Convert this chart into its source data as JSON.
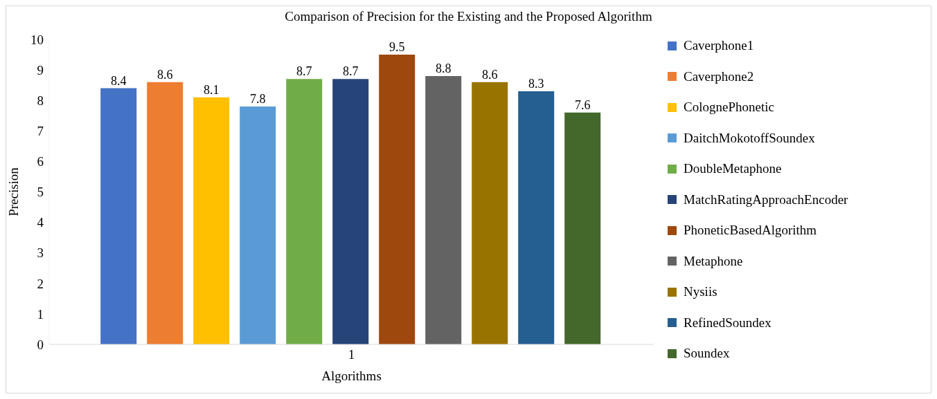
{
  "chart_data": {
    "type": "bar",
    "title": "Comparison of Precision for the Existing and the Proposed Algorithm",
    "xlabel": "Algorithms",
    "ylabel": "Precision",
    "categories": [
      "1"
    ],
    "series": [
      {
        "name": "Caverphone1",
        "color": "#4472c4",
        "values": [
          8.4
        ]
      },
      {
        "name": "Caverphone2",
        "color": "#ed7d31",
        "values": [
          8.6
        ]
      },
      {
        "name": "ColognePhonetic",
        "color": "#ffc000",
        "values": [
          8.1
        ]
      },
      {
        "name": "DaitchMokotoffSoundex",
        "color": "#5b9bd5",
        "values": [
          7.8
        ]
      },
      {
        "name": "DoubleMetaphone",
        "color": "#70ad47",
        "values": [
          8.7
        ]
      },
      {
        "name": "MatchRatingApproachEncoder",
        "color": "#264478",
        "values": [
          8.7
        ]
      },
      {
        "name": "PhoneticBasedAlgorithm",
        "color": "#9e480e",
        "values": [
          9.5
        ]
      },
      {
        "name": "Metaphone",
        "color": "#636363",
        "values": [
          8.8
        ]
      },
      {
        "name": "Nysiis",
        "color": "#997300",
        "values": [
          8.6
        ]
      },
      {
        "name": "RefinedSoundex",
        "color": "#255e91",
        "values": [
          8.3
        ]
      },
      {
        "name": "Soundex",
        "color": "#43682b",
        "values": [
          7.6
        ]
      }
    ],
    "ylim": [
      0,
      10
    ],
    "yticks": [
      0,
      1,
      2,
      3,
      4,
      5,
      6,
      7,
      8,
      9,
      10
    ],
    "grid": false,
    "legend": "right",
    "data_labels": true
  }
}
